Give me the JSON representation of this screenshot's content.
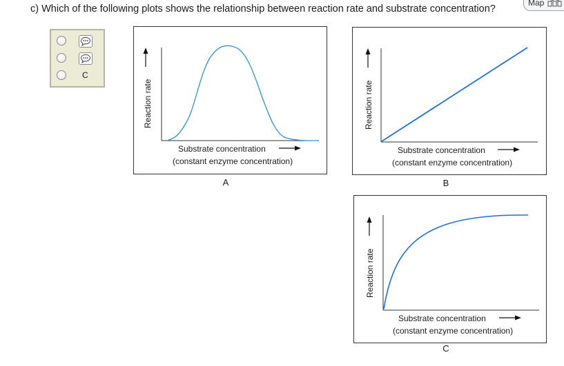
{
  "question": {
    "text": "c) Which of the following plots shows the relationship between reaction rate and substrate concentration?"
  },
  "map_badge": {
    "label": "Map",
    "icon": "grid-icon"
  },
  "answer_options": [
    {
      "kind": "chip",
      "icon": "speech-bubble-icon"
    },
    {
      "kind": "chip",
      "icon": "speech-bubble-icon"
    },
    {
      "kind": "text",
      "label": "C"
    }
  ],
  "panels": [
    {
      "letter": "A",
      "ylabel": "Reaction rate",
      "xlabel": "Substrate concentration",
      "xsublabel": "(constant enzyme concentration)",
      "curve_shape": "bell",
      "line_color": "#2f8fd8"
    },
    {
      "letter": "B",
      "ylabel": "Reaction rate",
      "xlabel": "Substrate concentration",
      "xsublabel": "(constant enzyme concentration)",
      "curve_shape": "linear",
      "line_color": "#1f6fd9"
    },
    {
      "letter": "C",
      "ylabel": "Reaction rate",
      "xlabel": "Substrate concentration",
      "xsublabel": "(constant enzyme concentration)",
      "curve_shape": "saturating",
      "line_color": "#1f6fd9"
    }
  ]
}
